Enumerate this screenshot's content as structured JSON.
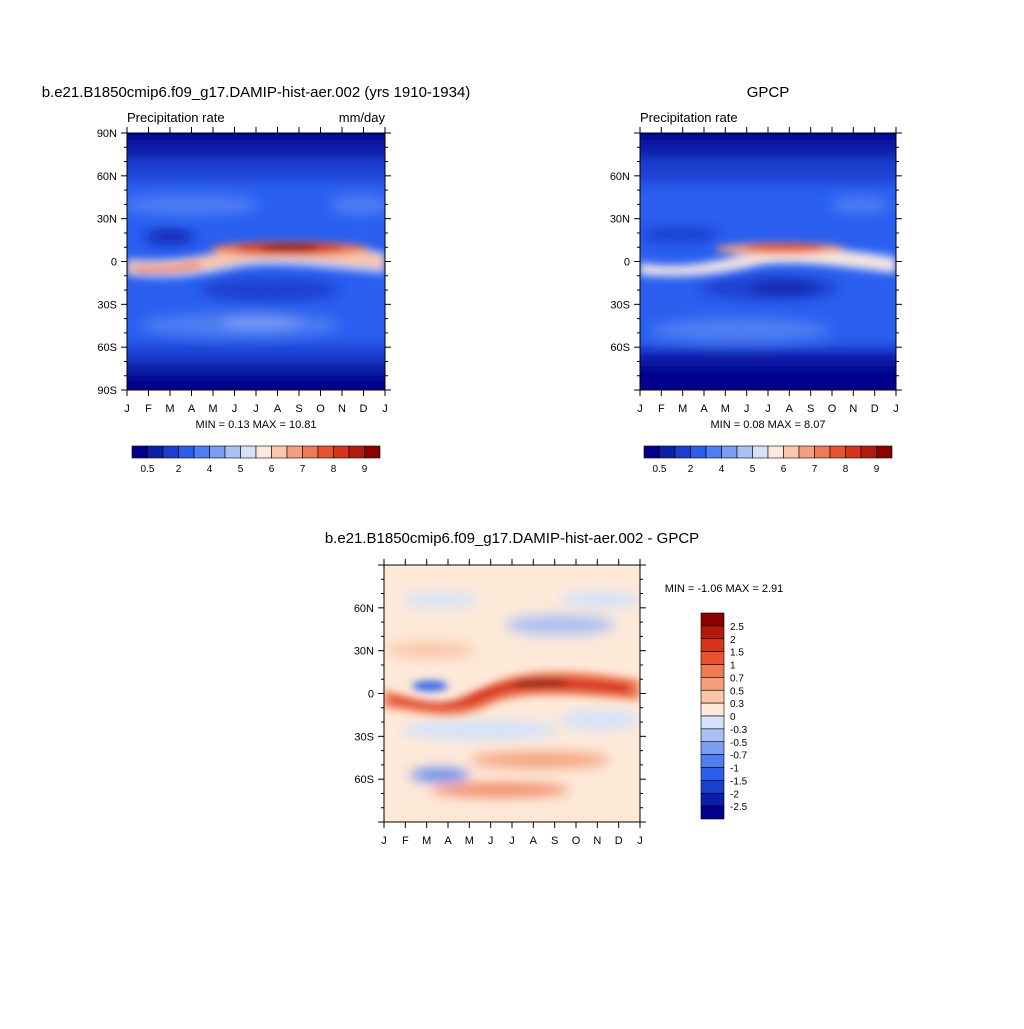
{
  "panels": [
    {
      "title": "b.e21.B1850cmip6.f09_g17.DAMIP-hist-aer.002 (yrs 1910-1934)",
      "left_label": "Precipitation rate",
      "right_label": "mm/day",
      "stats": "MIN =   0.13 MAX =  10.81",
      "xticks": [
        "J",
        "F",
        "M",
        "A",
        "M",
        "J",
        "J",
        "A",
        "S",
        "O",
        "N",
        "D",
        "J"
      ],
      "yticks": [
        "90N",
        "60N",
        "30N",
        "0",
        "30S",
        "60S",
        "90S"
      ]
    },
    {
      "title": "GPCP",
      "left_label": "Precipitation rate",
      "right_label": "",
      "stats": "MIN =   0.08 MAX =   8.07",
      "xticks": [
        "J",
        "F",
        "M",
        "A",
        "M",
        "J",
        "J",
        "A",
        "S",
        "O",
        "N",
        "D",
        "J"
      ],
      "yticks": [
        "",
        "60N",
        "30N",
        "0",
        "30S",
        "60S",
        ""
      ]
    },
    {
      "title": "b.e21.B1850cmip6.f09_g17.DAMIP-hist-aer.002 - GPCP",
      "stats": "MIN =  -1.06 MAX =   2.91",
      "xticks": [
        "J",
        "F",
        "M",
        "A",
        "M",
        "J",
        "J",
        "A",
        "S",
        "O",
        "N",
        "D",
        "J"
      ],
      "yticks": [
        "",
        "60N",
        "30N",
        "0",
        "30S",
        "60S",
        ""
      ]
    }
  ],
  "colorbar_precip": {
    "colors": [
      "#00008c",
      "#0a1fa8",
      "#1a3fd0",
      "#2a5ff0",
      "#4f7ef2",
      "#7c9ef2",
      "#aac0f5",
      "#d3e3fa",
      "#fde9d8",
      "#f9c6a8",
      "#f4a07c",
      "#ef7a55",
      "#e9542f",
      "#d8341a",
      "#b31a0c",
      "#8c0000"
    ],
    "labels": [
      "0.5",
      "2",
      "4",
      "5",
      "6",
      "7",
      "8",
      "9"
    ]
  },
  "colorbar_diff": {
    "colors": [
      "#8c0000",
      "#b31a0c",
      "#d8341a",
      "#e9542f",
      "#ef7a55",
      "#f4a07c",
      "#f9c6a8",
      "#fde9d8",
      "#d3e3fa",
      "#aac0f5",
      "#7c9ef2",
      "#4f7ef2",
      "#2a5ff0",
      "#1a3fd0",
      "#0a1fa8",
      "#00008c"
    ],
    "labels": [
      "2.5",
      "2",
      "1.5",
      "1",
      "0.7",
      "0.5",
      "0.3",
      "0",
      "-0.3",
      "-0.5",
      "-0.7",
      "-1",
      "-1.5",
      "-2",
      "-2.5"
    ]
  },
  "chart_data": [
    {
      "type": "heatmap",
      "title": "b.e21.B1850cmip6.f09_g17.DAMIP-hist-aer.002 (yrs 1910-1934)",
      "variable": "Precipitation rate",
      "units": "mm/day",
      "x": [
        "J",
        "F",
        "M",
        "A",
        "M",
        "J",
        "J",
        "A",
        "S",
        "O",
        "N",
        "D",
        "J"
      ],
      "y": [
        "90N",
        "60N",
        "30N",
        "0",
        "30S",
        "60S",
        "90S"
      ],
      "min": 0.13,
      "max": 10.81,
      "levels": [
        0.5,
        1,
        2,
        3,
        4,
        4.5,
        5,
        5.5,
        6,
        6.5,
        7,
        7.5,
        8,
        8.5,
        9
      ]
    },
    {
      "type": "heatmap",
      "title": "GPCP",
      "variable": "Precipitation rate",
      "x": [
        "J",
        "F",
        "M",
        "A",
        "M",
        "J",
        "J",
        "A",
        "S",
        "O",
        "N",
        "D",
        "J"
      ],
      "y": [
        "60N",
        "30N",
        "0",
        "30S",
        "60S"
      ],
      "min": 0.08,
      "max": 8.07,
      "levels": [
        0.5,
        1,
        2,
        3,
        4,
        4.5,
        5,
        5.5,
        6,
        6.5,
        7,
        7.5,
        8,
        8.5,
        9
      ]
    },
    {
      "type": "heatmap",
      "title": "b.e21.B1850cmip6.f09_g17.DAMIP-hist-aer.002 - GPCP",
      "x": [
        "J",
        "F",
        "M",
        "A",
        "M",
        "J",
        "J",
        "A",
        "S",
        "O",
        "N",
        "D",
        "J"
      ],
      "y": [
        "60N",
        "30N",
        "0",
        "30S",
        "60S"
      ],
      "min": -1.06,
      "max": 2.91,
      "levels": [
        -2.5,
        -2,
        -1.5,
        -1,
        -0.7,
        -0.5,
        -0.3,
        0,
        0.3,
        0.5,
        0.7,
        1,
        1.5,
        2,
        2.5
      ]
    }
  ]
}
